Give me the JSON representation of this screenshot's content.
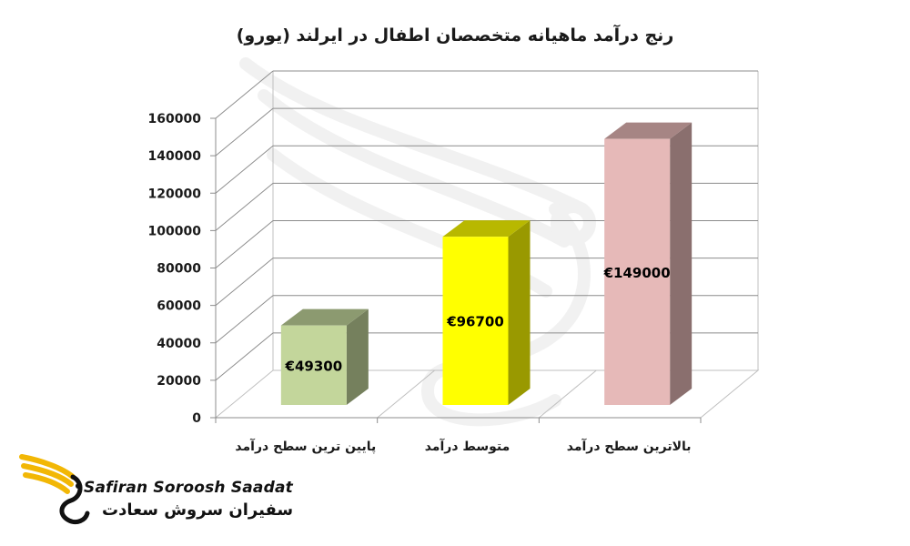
{
  "chart_data": {
    "type": "bar",
    "title": "رنج درآمد ماهیانه متخصصان اطفال در ایرلند (یورو)",
    "categories": [
      "پایین ترین سطح درآمد",
      "متوسط درآمد",
      "بالاترین سطح درآمد"
    ],
    "values": [
      49300,
      96700,
      149000
    ],
    "data_labels": [
      "€49300",
      "€96700",
      "€149000"
    ],
    "bar_colors": [
      "#c3d69b",
      "#ffff00",
      "#e6b9b8"
    ],
    "ylim": [
      0,
      160000
    ],
    "yticks": [
      "0",
      "20000",
      "40000",
      "60000",
      "80000",
      "100000",
      "120000",
      "140000",
      "160000"
    ],
    "grid": true,
    "three_d": true,
    "xlabel": "",
    "ylabel": ""
  },
  "logo": {
    "latin": "Safiran Soroosh Saadat",
    "persian": "سفیران سروش سعادت",
    "colors": {
      "wing": "#f2b705",
      "text": "#111111"
    }
  }
}
